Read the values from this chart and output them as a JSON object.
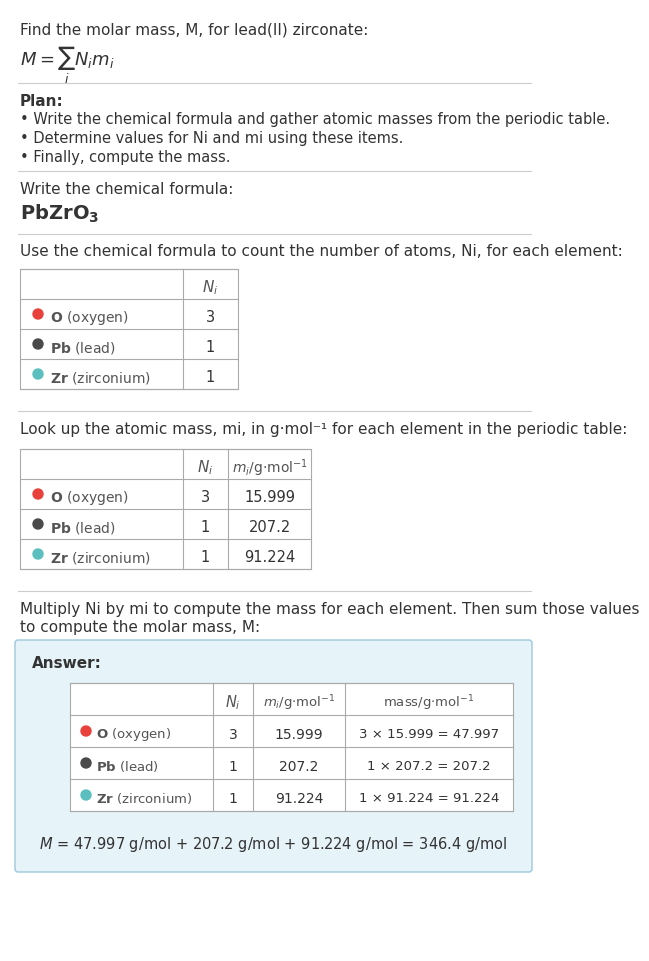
{
  "title_line1": "Find the molar mass, M, for lead(II) zirconate:",
  "plan_header": "Plan:",
  "plan_bullets": [
    "• Write the chemical formula and gather atomic masses from the periodic table.",
    "• Determine values for Ni and mi using these items.",
    "• Finally, compute the mass."
  ],
  "formula_header": "Write the chemical formula:",
  "table1_header": "Use the chemical formula to count the number of atoms, Ni, for each element:",
  "table2_header": "Look up the atomic mass, mi, in g·mol⁻¹ for each element in the periodic table:",
  "table3_header_1": "Multiply Ni by mi to compute the mass for each element. Then sum those values",
  "table3_header_2": "to compute the molar mass, M:",
  "answer_label": "Answer:",
  "elements": [
    {
      "element": "O",
      "label": "oxygen",
      "color": "#e8413b",
      "Ni": "3",
      "mi": "15.999",
      "mass": "3 × 15.999 = 47.997"
    },
    {
      "element": "Pb",
      "label": "lead",
      "color": "#4a4a4a",
      "Ni": "1",
      "mi": "207.2",
      "mass": "1 × 207.2 = 207.2"
    },
    {
      "element": "Zr",
      "label": "zirconium",
      "color": "#5bbfbf",
      "Ni": "1",
      "mi": "91.224",
      "mass": "1 × 91.224 = 91.224"
    }
  ],
  "final_answer": "M = 47.997 g/mol + 207.2 g/mol + 91.224 g/mol = 346.4 g/mol",
  "answer_bg_color": "#e6f3f8",
  "answer_border_color": "#9dc8dc",
  "bg_color": "#ffffff"
}
